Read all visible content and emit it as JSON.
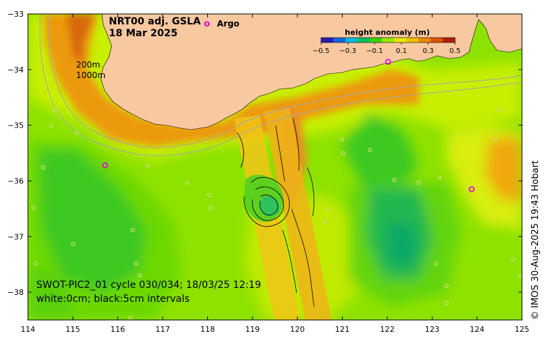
{
  "title": {
    "product": "NRT00 adj. GSLA",
    "date": "18 Mar 2025"
  },
  "legend": {
    "argo_marker": "o",
    "argo_label": "Argo",
    "colorbar_title": "height anomaly (m)",
    "colorbar_ticks": [
      "−0.5",
      "−0.3",
      "−0.1",
      "0.1",
      "0.3",
      "0.5"
    ],
    "colorbar_colors": [
      "#2a1bb0",
      "#1565e0",
      "#00b8e0",
      "#00c060",
      "#3dd400",
      "#9ae600",
      "#e8e800",
      "#f4c000",
      "#e88a00",
      "#d85400",
      "#b02000"
    ]
  },
  "depth_labels": {
    "d200": "200m",
    "d1000": "1000m"
  },
  "swot_annotation": {
    "line1": "SWOT-PIC2_01 cycle 030/034; 18/03/25 12:19",
    "line2": "white:0cm; black:5cm intervals"
  },
  "credit": "© IMOS 30-Aug-2025 19:43 Hobart",
  "colors": {
    "land": "#f8c8a0",
    "isobath": "#a8a8a8",
    "argo": "#e010d0"
  },
  "chart_data": {
    "type": "heatmap",
    "xlabel": "",
    "ylabel": "",
    "xlim": [
      114,
      125
    ],
    "ylim": [
      -38.5,
      -33
    ],
    "x_ticks": [
      "114",
      "115",
      "116",
      "117",
      "118",
      "119",
      "120",
      "121",
      "122",
      "123",
      "124",
      "125"
    ],
    "y_ticks": [
      "−33",
      "−34",
      "−35",
      "−36",
      "−37",
      "−38"
    ],
    "argo_floats": [
      {
        "lon": 115.72,
        "lat": -35.72
      },
      {
        "lon": 123.88,
        "lat": -36.15
      },
      {
        "lon": 122.02,
        "lat": -33.86
      }
    ]
  }
}
